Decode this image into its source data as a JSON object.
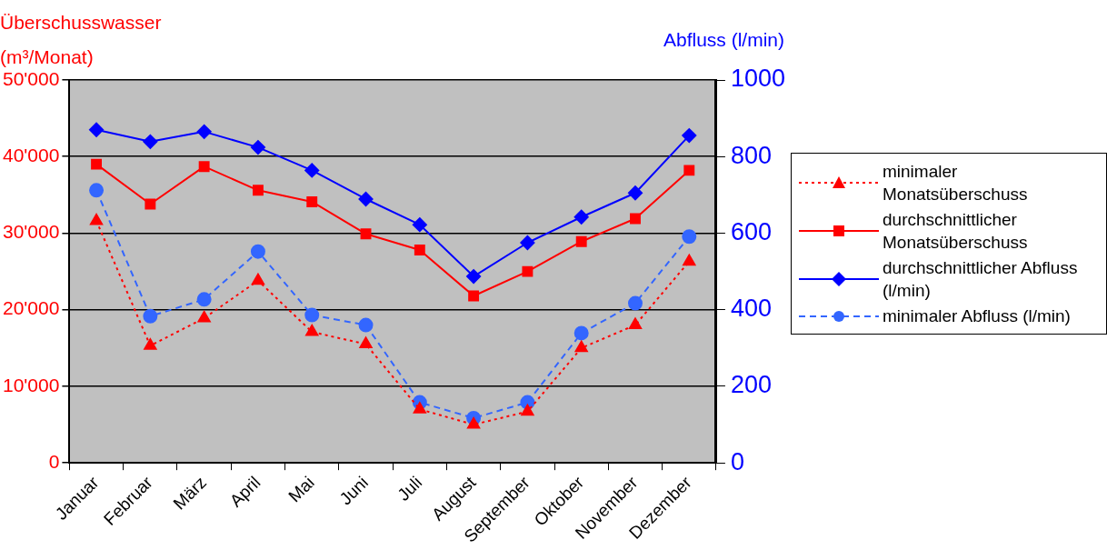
{
  "chart_data": {
    "type": "line",
    "ylabel": "Überschusswasser (m³/Monat)",
    "y2label": "Abfluss (l/min)",
    "categories": [
      "Januar",
      "Februar",
      "März",
      "April",
      "Mai",
      "Juni",
      "Juli",
      "August",
      "September",
      "Oktober",
      "November",
      "Dezember"
    ],
    "series": [
      {
        "name": "minimaler Monatsüberschuss",
        "color": "#ff0000",
        "marker": "triangle",
        "line_style": "dotted",
        "values": [
          31600,
          15300,
          18900,
          23800,
          17100,
          15500,
          7000,
          5000,
          6700,
          15000,
          18000,
          26300
        ]
      },
      {
        "name": "durchschnittlicher Monatsüberschuss",
        "color": "#ff0000",
        "marker": "square",
        "line_style": "solid",
        "values": [
          39000,
          33800,
          38700,
          35600,
          34100,
          29900,
          27800,
          21800,
          25000,
          28900,
          31900,
          38200
        ]
      },
      {
        "name": "durchschnittlicher Abfluss (l/min)",
        "color": "#0000ff",
        "marker": "diamond",
        "line_style": "solid",
        "axis": "y2",
        "values": [
          870,
          839,
          865,
          824,
          764,
          689,
          622,
          487,
          575,
          642,
          705,
          855
        ]
      },
      {
        "name": "minimaler Abfluss (l/min)",
        "color": "#3366ff",
        "marker": "circle",
        "line_style": "dashed",
        "axis": "y2",
        "values": [
          712,
          383,
          427,
          552,
          386,
          360,
          158,
          117,
          158,
          339,
          417,
          591
        ]
      }
    ],
    "ylim": [
      0,
      50000
    ],
    "yticks": [
      0,
      {
        "value": 10000,
        "label": "10'000"
      },
      {
        "value": 20000,
        "label": "20'000"
      },
      {
        "value": 30000,
        "label": "30'000"
      },
      {
        "value": 40000,
        "label": "40'000"
      },
      {
        "value": 50000,
        "label": "50'000"
      }
    ],
    "y2lim": [
      0,
      1000
    ],
    "y2ticks": [
      0,
      200,
      400,
      600,
      800,
      1000
    ],
    "grid": "y",
    "legend": "right"
  }
}
